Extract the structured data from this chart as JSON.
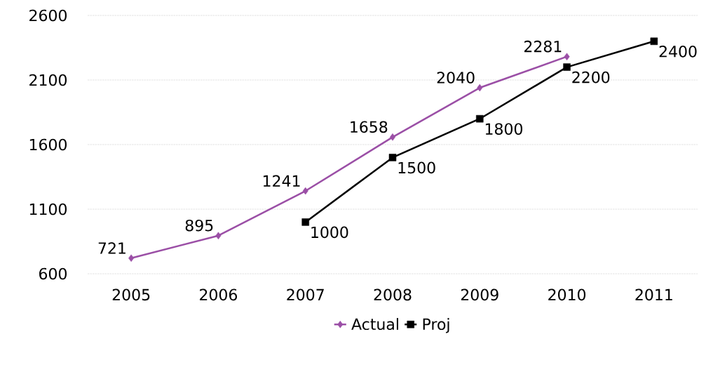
{
  "chart_data": {
    "type": "line",
    "categories": [
      "2005",
      "2006",
      "2007",
      "2008",
      "2009",
      "2010",
      "2011"
    ],
    "series": [
      {
        "name": "Actual",
        "color": "#9b4fa6",
        "marker": "diamond",
        "values": [
          721,
          895,
          1241,
          1658,
          2040,
          2281,
          null
        ]
      },
      {
        "name": "Proj",
        "color": "#000000",
        "marker": "square",
        "values": [
          null,
          null,
          1000,
          1500,
          1800,
          2200,
          2400
        ]
      }
    ],
    "ylim": [
      600,
      2600
    ],
    "yticks": [
      600,
      1100,
      1600,
      2100,
      2600
    ],
    "grid": "y",
    "legend": "bottom",
    "data_labels": true
  }
}
